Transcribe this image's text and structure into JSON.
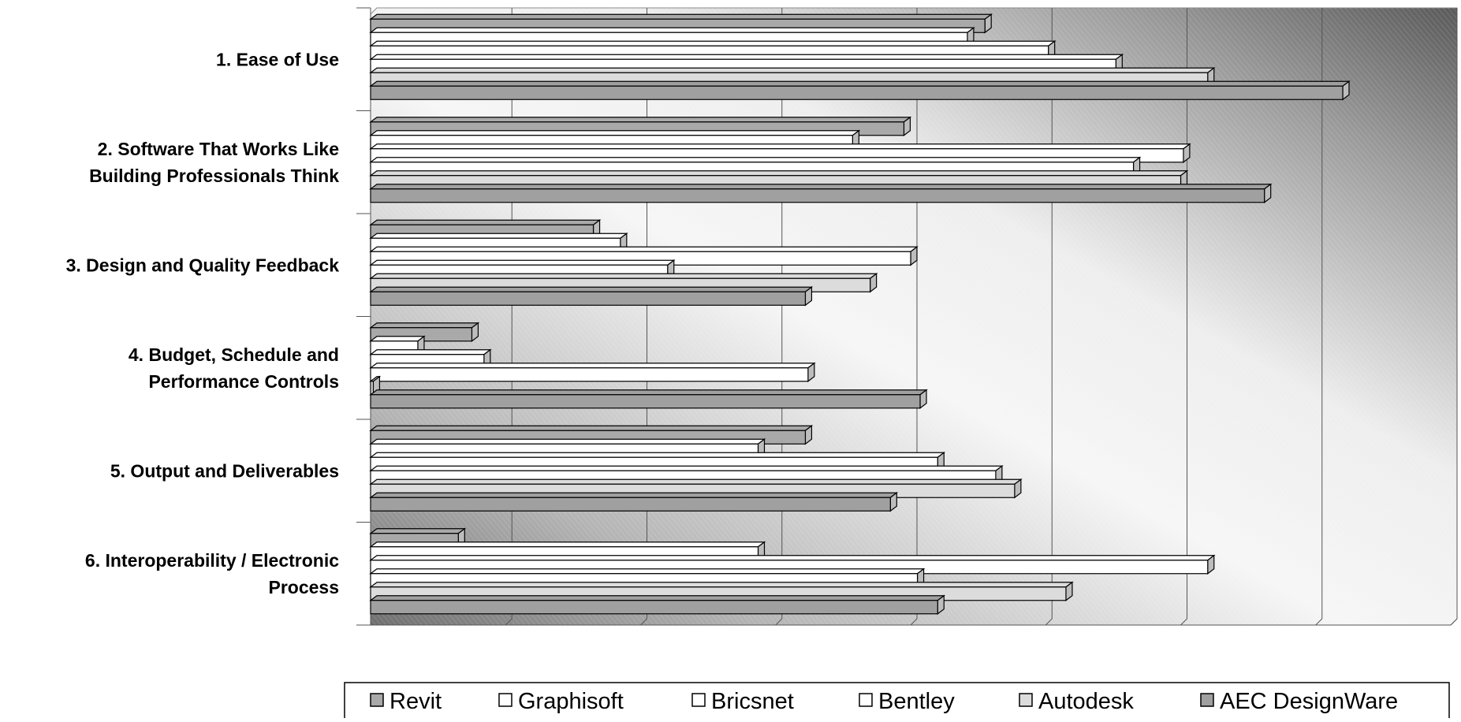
{
  "chart_data": {
    "type": "bar",
    "orientation": "horizontal",
    "style": "3d",
    "categories": [
      [
        "1. Ease of Use"
      ],
      [
        "2. Software That Works Like",
        "Building Professionals Think"
      ],
      [
        "3. Design and Quality Feedback"
      ],
      [
        "4. Budget, Schedule and",
        "Performance Controls"
      ],
      [
        "5. Output and Deliverables"
      ],
      [
        "6. Interoperability / Electronic",
        "Process"
      ]
    ],
    "series": [
      {
        "name": "Revit",
        "color": "#a9a9a9",
        "values": [
          4.55,
          3.95,
          1.65,
          0.75,
          3.22,
          0.65
        ]
      },
      {
        "name": "Graphisoft",
        "color": "#ffffff",
        "values": [
          4.42,
          3.57,
          1.85,
          0.35,
          2.87,
          2.87
        ]
      },
      {
        "name": "Bricsnet",
        "color": "#ffffff",
        "values": [
          5.02,
          6.02,
          4.0,
          0.84,
          4.2,
          6.2
        ]
      },
      {
        "name": "Bentley",
        "color": "#ffffff",
        "values": [
          5.52,
          5.65,
          2.2,
          3.24,
          4.63,
          4.05
        ]
      },
      {
        "name": "Autodesk",
        "color": "#dcdcdc",
        "values": [
          6.2,
          6.0,
          3.7,
          0.02,
          4.77,
          5.15
        ]
      },
      {
        "name": "AEC DesignWare",
        "color": "#a0a0a0",
        "values": [
          7.2,
          6.62,
          3.22,
          4.07,
          3.85,
          4.2
        ]
      }
    ],
    "xlim": [
      0,
      8
    ],
    "x_gridlines": 8,
    "tick_labels_shown": false,
    "grid": true,
    "legend": "bottom"
  }
}
